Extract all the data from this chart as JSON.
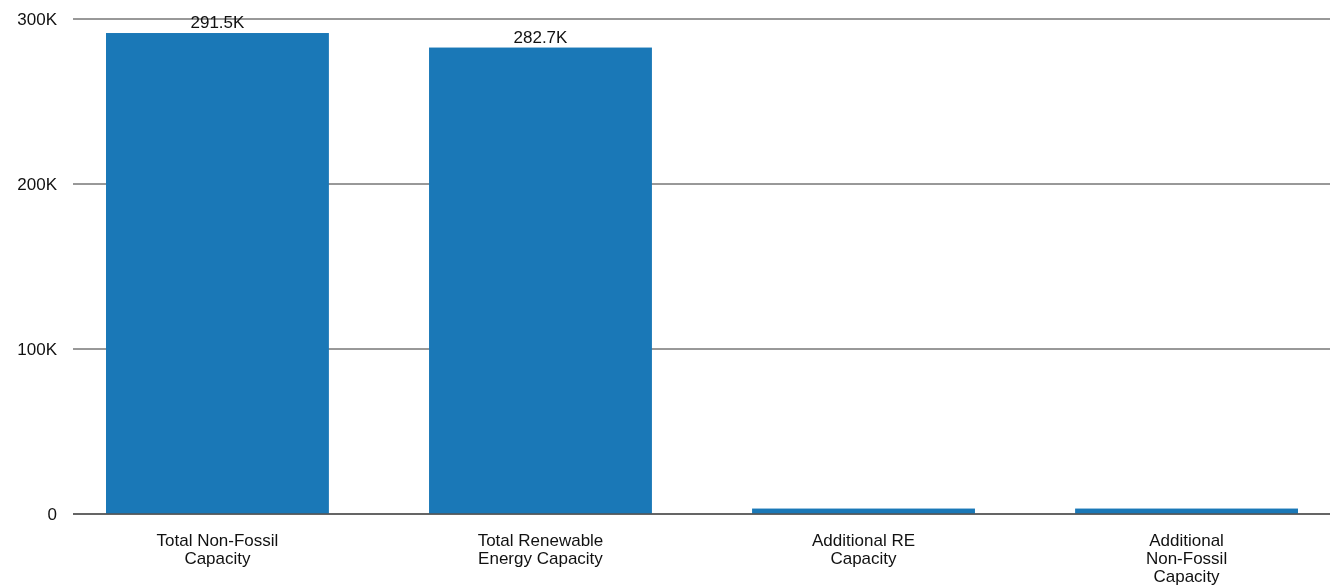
{
  "chart_data": {
    "type": "bar",
    "categories": [
      "Total Non-Fossil Capacity",
      "Total Renewable Energy Capacity",
      "Additional RE Capacity",
      "Additional Non-Fossil Capacity"
    ],
    "values": [
      291500,
      282700,
      3300,
      3300
    ],
    "value_labels": [
      "291.5K",
      "282.7K",
      null,
      null
    ],
    "color": "#1a78b7",
    "ylim": [
      0,
      300000
    ],
    "yticks": [
      {
        "value": 0,
        "label": "0"
      },
      {
        "value": 100000,
        "label": "100K"
      },
      {
        "value": 200000,
        "label": "200K"
      },
      {
        "value": 300000,
        "label": "300K"
      }
    ],
    "grid": "y"
  }
}
